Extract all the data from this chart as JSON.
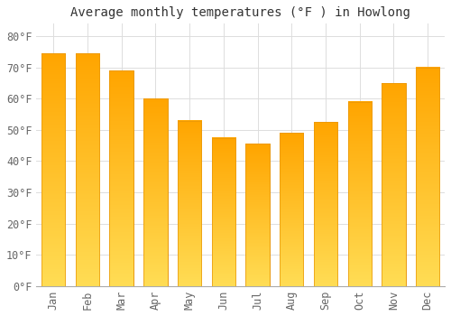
{
  "title": "Average monthly temperatures (°F ) in Howlong",
  "months": [
    "Jan",
    "Feb",
    "Mar",
    "Apr",
    "May",
    "Jun",
    "Jul",
    "Aug",
    "Sep",
    "Oct",
    "Nov",
    "Dec"
  ],
  "values": [
    74.5,
    74.5,
    69.0,
    60.0,
    53.0,
    47.5,
    45.5,
    49.0,
    52.5,
    59.0,
    65.0,
    70.0
  ],
  "bar_color_top": "#FFA500",
  "bar_color_bottom": "#FFD966",
  "bar_edge_color": "#E8960A",
  "background_color": "#FFFFFF",
  "grid_color": "#DDDDDD",
  "text_color": "#666666",
  "ylim": [
    0,
    84
  ],
  "yticks": [
    0,
    10,
    20,
    30,
    40,
    50,
    60,
    70,
    80
  ],
  "title_fontsize": 10,
  "tick_fontsize": 8.5
}
